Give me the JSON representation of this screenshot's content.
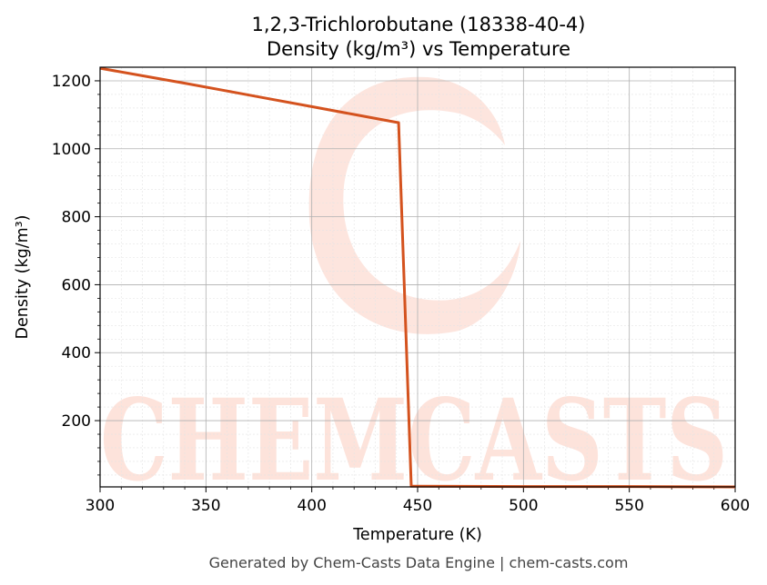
{
  "chart_data": {
    "type": "line",
    "title_line1": "1,2,3-Trichlorobutane (18338-40-4)",
    "title_line2": "Density (kg/m³) vs Temperature",
    "xlabel": "Temperature (K)",
    "ylabel": "Density (kg/m³)",
    "xlim": [
      300,
      600
    ],
    "ylim": [
      5,
      1240
    ],
    "x_ticks": [
      300,
      350,
      400,
      450,
      500,
      550,
      600
    ],
    "y_ticks": [
      200,
      400,
      600,
      800,
      1000,
      1200
    ],
    "grid": true,
    "series": [
      {
        "color": "#d4521e",
        "x": [
          300,
          320,
          340,
          360,
          380,
          400,
          420,
          440,
          441,
          447,
          450,
          500,
          550,
          600
        ],
        "y": [
          1237,
          1215,
          1193,
          1170,
          1147,
          1124,
          1101,
          1078,
          1077,
          7,
          7,
          6,
          6,
          5
        ]
      }
    ]
  },
  "footer": "Generated by Chem-Casts Data Engine | chem-casts.com",
  "watermark": "CHEMCASTS"
}
